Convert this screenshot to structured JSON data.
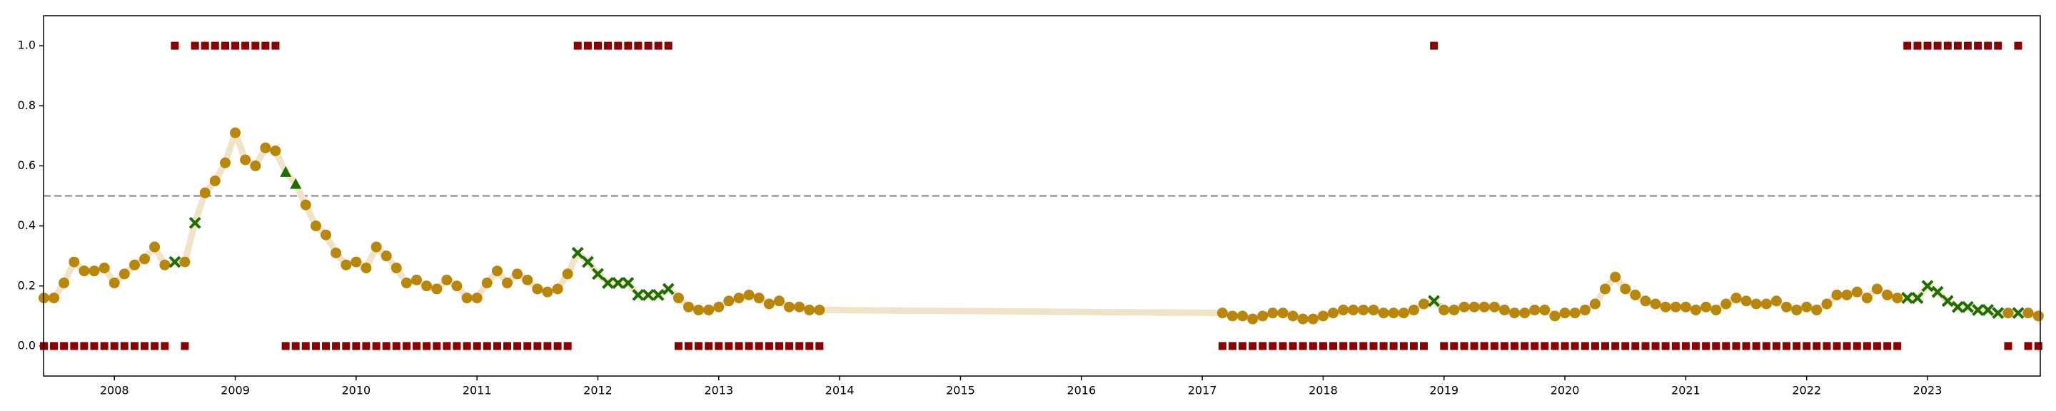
{
  "chart_data": {
    "type": "line",
    "x": [
      2007.417,
      2007.5,
      2007.583,
      2007.667,
      2007.75,
      2007.833,
      2007.917,
      2008,
      2008.083,
      2008.167,
      2008.25,
      2008.333,
      2008.417,
      2008.5,
      2008.583,
      2008.667,
      2008.75,
      2008.833,
      2008.917,
      2009,
      2009.083,
      2009.167,
      2009.25,
      2009.333,
      2009.417,
      2009.5,
      2009.583,
      2009.667,
      2009.75,
      2009.833,
      2009.917,
      2010,
      2010.083,
      2010.167,
      2010.25,
      2010.333,
      2010.417,
      2010.5,
      2010.583,
      2010.667,
      2010.75,
      2010.833,
      2010.917,
      2011,
      2011.083,
      2011.167,
      2011.25,
      2011.333,
      2011.417,
      2011.5,
      2011.583,
      2011.667,
      2011.75,
      2011.833,
      2011.917,
      2012,
      2012.083,
      2012.167,
      2012.25,
      2012.333,
      2012.417,
      2012.5,
      2012.583,
      2012.667,
      2012.75,
      2012.833,
      2012.917,
      2013,
      2013.083,
      2013.167,
      2013.25,
      2013.333,
      2013.417,
      2013.5,
      2013.583,
      2013.667,
      2013.75,
      2013.833,
      2017.167,
      2017.25,
      2017.333,
      2017.417,
      2017.5,
      2017.583,
      2017.667,
      2017.75,
      2017.833,
      2017.917,
      2018,
      2018.083,
      2018.167,
      2018.25,
      2018.333,
      2018.417,
      2018.5,
      2018.583,
      2018.667,
      2018.75,
      2018.833,
      2018.917,
      2019,
      2019.083,
      2019.167,
      2019.25,
      2019.333,
      2019.417,
      2019.5,
      2019.583,
      2019.667,
      2019.75,
      2019.833,
      2019.917,
      2020,
      2020.083,
      2020.167,
      2020.25,
      2020.333,
      2020.417,
      2020.5,
      2020.583,
      2020.667,
      2020.75,
      2020.833,
      2020.917,
      2021,
      2021.083,
      2021.167,
      2021.25,
      2021.333,
      2021.417,
      2021.5,
      2021.583,
      2021.667,
      2021.75,
      2021.833,
      2021.917,
      2022,
      2022.083,
      2022.167,
      2022.25,
      2022.333,
      2022.417,
      2022.5,
      2022.583,
      2022.667,
      2022.75,
      2022.833,
      2022.917,
      2023,
      2023.083,
      2023.167,
      2023.25,
      2023.333,
      2023.417,
      2023.5,
      2023.583,
      2023.667,
      2023.75,
      2023.833,
      2023.917
    ],
    "series": [
      {
        "marker": "none",
        "color": "#efe3c8",
        "values": [
          0.16,
          0.16,
          0.21,
          0.28,
          0.25,
          0.25,
          0.26,
          0.21,
          0.24,
          0.27,
          0.29,
          0.33,
          0.27,
          0.28,
          0.28,
          0.41,
          0.51,
          0.55,
          0.61,
          0.71,
          0.62,
          0.6,
          0.66,
          0.65,
          0.58,
          0.54,
          0.47,
          0.4,
          0.37,
          0.31,
          0.27,
          0.28,
          0.26,
          0.33,
          0.3,
          0.26,
          0.21,
          0.22,
          0.2,
          0.19,
          0.22,
          0.2,
          0.16,
          0.16,
          0.21,
          0.25,
          0.21,
          0.24,
          0.22,
          0.19,
          0.18,
          0.19,
          0.24,
          0.31,
          0.28,
          0.24,
          0.21,
          0.21,
          0.21,
          0.17,
          0.17,
          0.17,
          0.19,
          0.16,
          0.13,
          0.12,
          0.12,
          0.13,
          0.15,
          0.16,
          0.17,
          0.16,
          0.14,
          0.15,
          0.13,
          0.13,
          0.12,
          0.12,
          0.11,
          0.1,
          0.1,
          0.09,
          0.1,
          0.11,
          0.11,
          0.1,
          0.09,
          0.09,
          0.1,
          0.11,
          0.12,
          0.12,
          0.12,
          0.12,
          0.11,
          0.11,
          0.11,
          0.12,
          0.14,
          0.15,
          0.12,
          0.12,
          0.13,
          0.13,
          0.13,
          0.13,
          0.12,
          0.11,
          0.11,
          0.12,
          0.12,
          0.1,
          0.11,
          0.11,
          0.12,
          0.14,
          0.19,
          0.23,
          0.19,
          0.17,
          0.15,
          0.14,
          0.13,
          0.13,
          0.13,
          0.12,
          0.13,
          0.12,
          0.14,
          0.16,
          0.15,
          0.14,
          0.14,
          0.15,
          0.13,
          0.12,
          0.13,
          0.12,
          0.14,
          0.17,
          0.17,
          0.18,
          0.16,
          0.19,
          0.17,
          0.16,
          0.16,
          0.16,
          0.2,
          0.18,
          0.15,
          0.13,
          0.13,
          0.12,
          0.12,
          0.11,
          0.11,
          0.11,
          0.11,
          0.1
        ]
      },
      {
        "marker": "s",
        "color": "#8b0000",
        "values": [
          0,
          0,
          0,
          0,
          0,
          0,
          0,
          0,
          0,
          0,
          0,
          0,
          0,
          1,
          0,
          1,
          1,
          1,
          1,
          1,
          1,
          1,
          1,
          1,
          0,
          0,
          0,
          0,
          0,
          0,
          0,
          0,
          0,
          0,
          0,
          0,
          0,
          0,
          0,
          0,
          0,
          0,
          0,
          0,
          0,
          0,
          0,
          0,
          0,
          0,
          0,
          0,
          0,
          1,
          1,
          1,
          1,
          1,
          1,
          1,
          1,
          1,
          1,
          0,
          0,
          0,
          0,
          0,
          0,
          0,
          0,
          0,
          0,
          0,
          0,
          0,
          0,
          0,
          0,
          0,
          0,
          0,
          0,
          0,
          0,
          0,
          0,
          0,
          0,
          0,
          0,
          0,
          0,
          0,
          0,
          0,
          0,
          0,
          0,
          1,
          0,
          0,
          0,
          0,
          0,
          0,
          0,
          0,
          0,
          0,
          0,
          0,
          0,
          0,
          0,
          0,
          0,
          0,
          0,
          0,
          0,
          0,
          0,
          0,
          0,
          0,
          0,
          0,
          0,
          0,
          0,
          0,
          0,
          0,
          0,
          0,
          0,
          0,
          0,
          0,
          0,
          0,
          0,
          0,
          0,
          0,
          1,
          1,
          1,
          1,
          1,
          1,
          1,
          1,
          1,
          1,
          0,
          1,
          0,
          0
        ]
      },
      {
        "marker": "o",
        "color": "#b8860b",
        "values": [
          0.16,
          0.16,
          0.21,
          0.28,
          0.25,
          0.25,
          0.26,
          0.21,
          0.24,
          0.27,
          0.29,
          0.33,
          0.27,
          null,
          0.28,
          null,
          0.51,
          0.55,
          0.61,
          0.71,
          0.62,
          0.6,
          0.66,
          0.65,
          null,
          null,
          0.47,
          0.4,
          0.37,
          0.31,
          0.27,
          0.28,
          0.26,
          0.33,
          0.3,
          0.26,
          0.21,
          0.22,
          0.2,
          0.19,
          0.22,
          0.2,
          0.16,
          0.16,
          0.21,
          0.25,
          0.21,
          0.24,
          0.22,
          0.19,
          0.18,
          0.19,
          0.24,
          null,
          null,
          null,
          null,
          null,
          null,
          null,
          null,
          null,
          null,
          0.16,
          0.13,
          0.12,
          0.12,
          0.13,
          0.15,
          0.16,
          0.17,
          0.16,
          0.14,
          0.15,
          0.13,
          0.13,
          0.12,
          0.12,
          0.11,
          0.1,
          0.1,
          0.09,
          0.1,
          0.11,
          0.11,
          0.1,
          0.09,
          0.09,
          0.1,
          0.11,
          0.12,
          0.12,
          0.12,
          0.12,
          0.11,
          0.11,
          0.11,
          0.12,
          0.14,
          null,
          0.12,
          0.12,
          0.13,
          0.13,
          0.13,
          0.13,
          0.12,
          0.11,
          0.11,
          0.12,
          0.12,
          0.1,
          0.11,
          0.11,
          0.12,
          0.14,
          0.19,
          0.23,
          0.19,
          0.17,
          0.15,
          0.14,
          0.13,
          0.13,
          0.13,
          0.12,
          0.13,
          0.12,
          0.14,
          0.16,
          0.15,
          0.14,
          0.14,
          0.15,
          0.13,
          0.12,
          0.13,
          0.12,
          0.14,
          0.17,
          0.17,
          0.18,
          0.16,
          0.19,
          0.17,
          0.16,
          null,
          null,
          null,
          null,
          null,
          null,
          null,
          null,
          null,
          null,
          0.11,
          null,
          0.11,
          0.1
        ]
      },
      {
        "marker": "x",
        "color": "#1e6e00",
        "x": [
          2008.5,
          2008.667,
          2011.833,
          2011.917,
          2012,
          2012.083,
          2012.167,
          2012.25,
          2012.333,
          2012.417,
          2012.5,
          2012.583,
          2018.917,
          2022.833,
          2022.917,
          2023,
          2023.083,
          2023.167,
          2023.25,
          2023.333,
          2023.417,
          2023.5,
          2023.583,
          2023.75
        ],
        "values": [
          0.28,
          0.41,
          0.31,
          0.28,
          0.24,
          0.21,
          0.21,
          0.21,
          0.17,
          0.17,
          0.17,
          0.19,
          0.15,
          0.16,
          0.16,
          0.2,
          0.18,
          0.15,
          0.13,
          0.13,
          0.12,
          0.12,
          0.11,
          0.11
        ]
      },
      {
        "marker": "^",
        "color": "#1e6e00",
        "x": [
          2009.417,
          2009.5
        ],
        "values": [
          0.58,
          0.54
        ]
      }
    ],
    "hlines": [
      0.5
    ],
    "xlim": [
      2007.414,
      2023.933
    ],
    "ylim": [
      -0.1,
      1.1
    ],
    "xticks": [
      2008,
      2009,
      2010,
      2011,
      2012,
      2013,
      2014,
      2015,
      2016,
      2017,
      2018,
      2019,
      2020,
      2021,
      2022,
      2023
    ],
    "yticks": [
      {
        "value": 0,
        "label": "0.0"
      },
      0.2,
      0.4,
      0.6,
      0.8,
      {
        "value": 1,
        "label": "1.0"
      }
    ]
  }
}
